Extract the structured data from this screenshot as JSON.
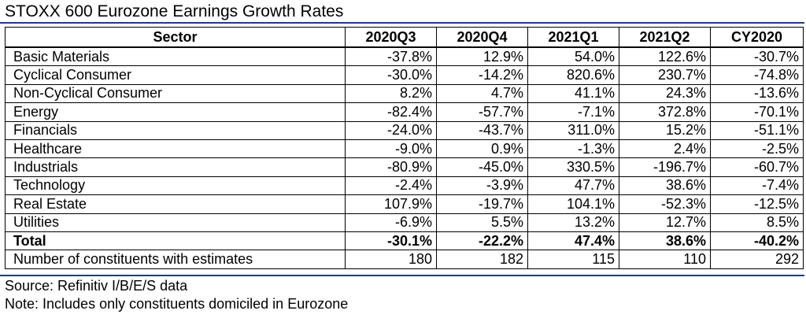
{
  "chart_data": {
    "type": "table",
    "title": "STOXX 600 Eurozone Earnings Growth Rates",
    "columns": [
      "Sector",
      "2020Q3",
      "2020Q4",
      "2021Q1",
      "2021Q2",
      "CY2020"
    ],
    "rows": [
      {
        "sector": "Basic Materials",
        "values": [
          "-37.8%",
          "12.9%",
          "54.0%",
          "122.6%",
          "-30.7%"
        ]
      },
      {
        "sector": "Cyclical Consumer",
        "values": [
          "-30.0%",
          "-14.2%",
          "820.6%",
          "230.7%",
          "-74.8%"
        ]
      },
      {
        "sector": "Non-Cyclical Consumer",
        "values": [
          "8.2%",
          "4.7%",
          "41.1%",
          "24.3%",
          "-13.6%"
        ]
      },
      {
        "sector": "Energy",
        "values": [
          "-82.4%",
          "-57.7%",
          "-7.1%",
          "372.8%",
          "-70.1%"
        ]
      },
      {
        "sector": "Financials",
        "values": [
          "-24.0%",
          "-43.7%",
          "311.0%",
          "15.2%",
          "-51.1%"
        ]
      },
      {
        "sector": "Healthcare",
        "values": [
          "-9.0%",
          "0.9%",
          "-1.3%",
          "2.4%",
          "-2.5%"
        ]
      },
      {
        "sector": "Industrials",
        "values": [
          "-80.9%",
          "-45.0%",
          "330.5%",
          "-196.7%",
          "-60.7%"
        ]
      },
      {
        "sector": "Technology",
        "values": [
          "-2.4%",
          "-3.9%",
          "47.7%",
          "38.6%",
          "-7.4%"
        ]
      },
      {
        "sector": "Real Estate",
        "values": [
          "107.9%",
          "-19.7%",
          "104.1%",
          "-52.3%",
          "-12.5%"
        ]
      },
      {
        "sector": "Utilities",
        "values": [
          "-6.9%",
          "5.5%",
          "13.2%",
          "12.7%",
          "8.5%"
        ]
      },
      {
        "sector": "Total",
        "values": [
          "-30.1%",
          "-22.2%",
          "47.4%",
          "38.6%",
          "-40.2%"
        ],
        "bold": true
      },
      {
        "sector": "Number of constituents with estimates",
        "values": [
          "180",
          "182",
          "115",
          "110",
          "292"
        ]
      }
    ],
    "source": "Source: Refinitiv I/B/E/S data",
    "note": "Note: Includes only constituents domiciled in Eurozone"
  },
  "colors": {
    "rule": "#1f3c88"
  }
}
